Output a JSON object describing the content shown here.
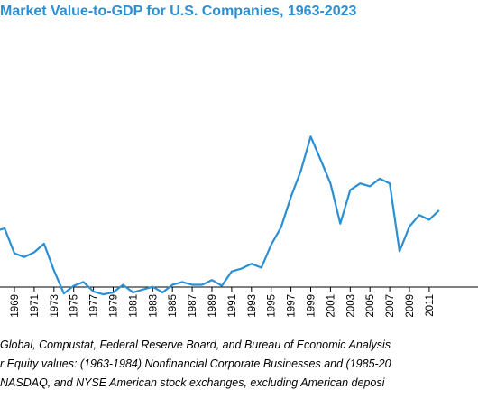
{
  "chart_data": {
    "type": "line",
    "title": "Market Value-to-GDP for U.S. Companies, 1963-2023",
    "xlabel": "",
    "ylabel": "",
    "x_tick_labels": [
      "1969",
      "1971",
      "1973",
      "1975",
      "1977",
      "1979",
      "1981",
      "1983",
      "1985",
      "1987",
      "1989",
      "1991",
      "1993",
      "1995",
      "1997",
      "1999",
      "2001",
      "2003",
      "2005",
      "2007",
      "2009",
      "2011"
    ],
    "series": [
      {
        "color": "#2a8fd4",
        "x": [
          1967,
          1968,
          1969,
          1970,
          1971,
          1972,
          1973,
          1974,
          1975,
          1976,
          1977,
          1978,
          1979,
          1980,
          1981,
          1982,
          1983,
          1984,
          1985,
          1986,
          1987,
          1988,
          1989,
          1990,
          1991,
          1992,
          1993,
          1994,
          1995,
          1996,
          1997,
          1998,
          1999,
          2000,
          2001,
          2002,
          2003,
          2004,
          2005,
          2006,
          2007,
          2008,
          2009,
          2010,
          2011,
          2012
        ],
        "values": [
          0.735,
          0.75,
          0.62,
          0.6,
          0.625,
          0.67,
          0.53,
          0.41,
          0.45,
          0.47,
          0.42,
          0.405,
          0.415,
          0.455,
          0.415,
          0.43,
          0.445,
          0.415,
          0.455,
          0.47,
          0.455,
          0.455,
          0.48,
          0.45,
          0.525,
          0.54,
          0.565,
          0.545,
          0.665,
          0.755,
          0.915,
          1.05,
          1.23,
          1.11,
          0.985,
          0.775,
          0.95,
          0.985,
          0.97,
          1.01,
          0.985,
          0.63,
          0.76,
          0.82,
          0.795,
          0.845
        ]
      }
    ]
  },
  "source_notes": [
    "Global, Compustat, Federal Reserve Board, and Bureau of Economic Analysis",
    "r Equity values: (1963-1984) Nonfinancial Corporate Businesses and (1985-20",
    "NASDAQ, and NYSE American stock exchanges, excluding American deposi"
  ]
}
